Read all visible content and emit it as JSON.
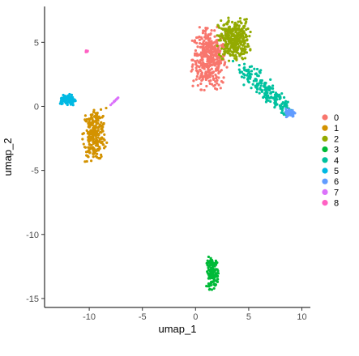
{
  "chart_data": {
    "type": "scatter",
    "title": "",
    "xlabel": "umap_1",
    "ylabel": "umap_2",
    "xlim": [
      -14.2,
      10.8
    ],
    "ylim": [
      -15.7,
      7.8
    ],
    "xticks": [
      -10,
      -5,
      0,
      5,
      10
    ],
    "xtick_labels": [
      "-10",
      "-5",
      "0",
      "5",
      "10"
    ],
    "yticks": [
      -15,
      -10,
      -5,
      0,
      5
    ],
    "ytick_labels": [
      "-15",
      "-10",
      "-5",
      "0",
      "5"
    ],
    "grid": false,
    "legend_position": "right",
    "point_marker": "filled circle",
    "series": [
      {
        "name": "0",
        "color": "#F8766D",
        "center": [
          1.3,
          3.7
        ],
        "spread": [
          1.3,
          1.9
        ],
        "count": 420
      },
      {
        "name": "1",
        "color": "#D39200",
        "center": [
          -9.5,
          -2.2
        ],
        "spread": [
          0.9,
          1.7
        ],
        "count": 260
      },
      {
        "name": "2",
        "color": "#93AA00",
        "center": [
          3.6,
          5.2
        ],
        "spread": [
          1.2,
          1.3
        ],
        "count": 340
      },
      {
        "name": "3",
        "color": "#00BA38",
        "center": [
          1.6,
          -13.0
        ],
        "spread": [
          0.45,
          1.0
        ],
        "count": 150
      },
      {
        "name": "4",
        "color": "#00C19F",
        "center": [
          6.0,
          1.8
        ],
        "spread": [
          1.1,
          1.0
        ],
        "count": 200
      },
      {
        "name": "5",
        "color": "#00B9E3",
        "center": [
          -12.0,
          0.5
        ],
        "spread": [
          0.6,
          0.35
        ],
        "count": 90
      },
      {
        "name": "6",
        "color": "#619CFF",
        "center": [
          8.9,
          -0.5
        ],
        "spread": [
          0.35,
          0.25
        ],
        "count": 70
      },
      {
        "name": "7",
        "color": "#DB72FB",
        "center": [
          -7.5,
          0.5
        ],
        "spread": [
          0.35,
          0.35
        ],
        "count": 12
      },
      {
        "name": "8",
        "color": "#FF61C3",
        "center": [
          -10.2,
          4.3
        ],
        "spread": [
          0.1,
          0.06
        ],
        "count": 5
      }
    ]
  }
}
